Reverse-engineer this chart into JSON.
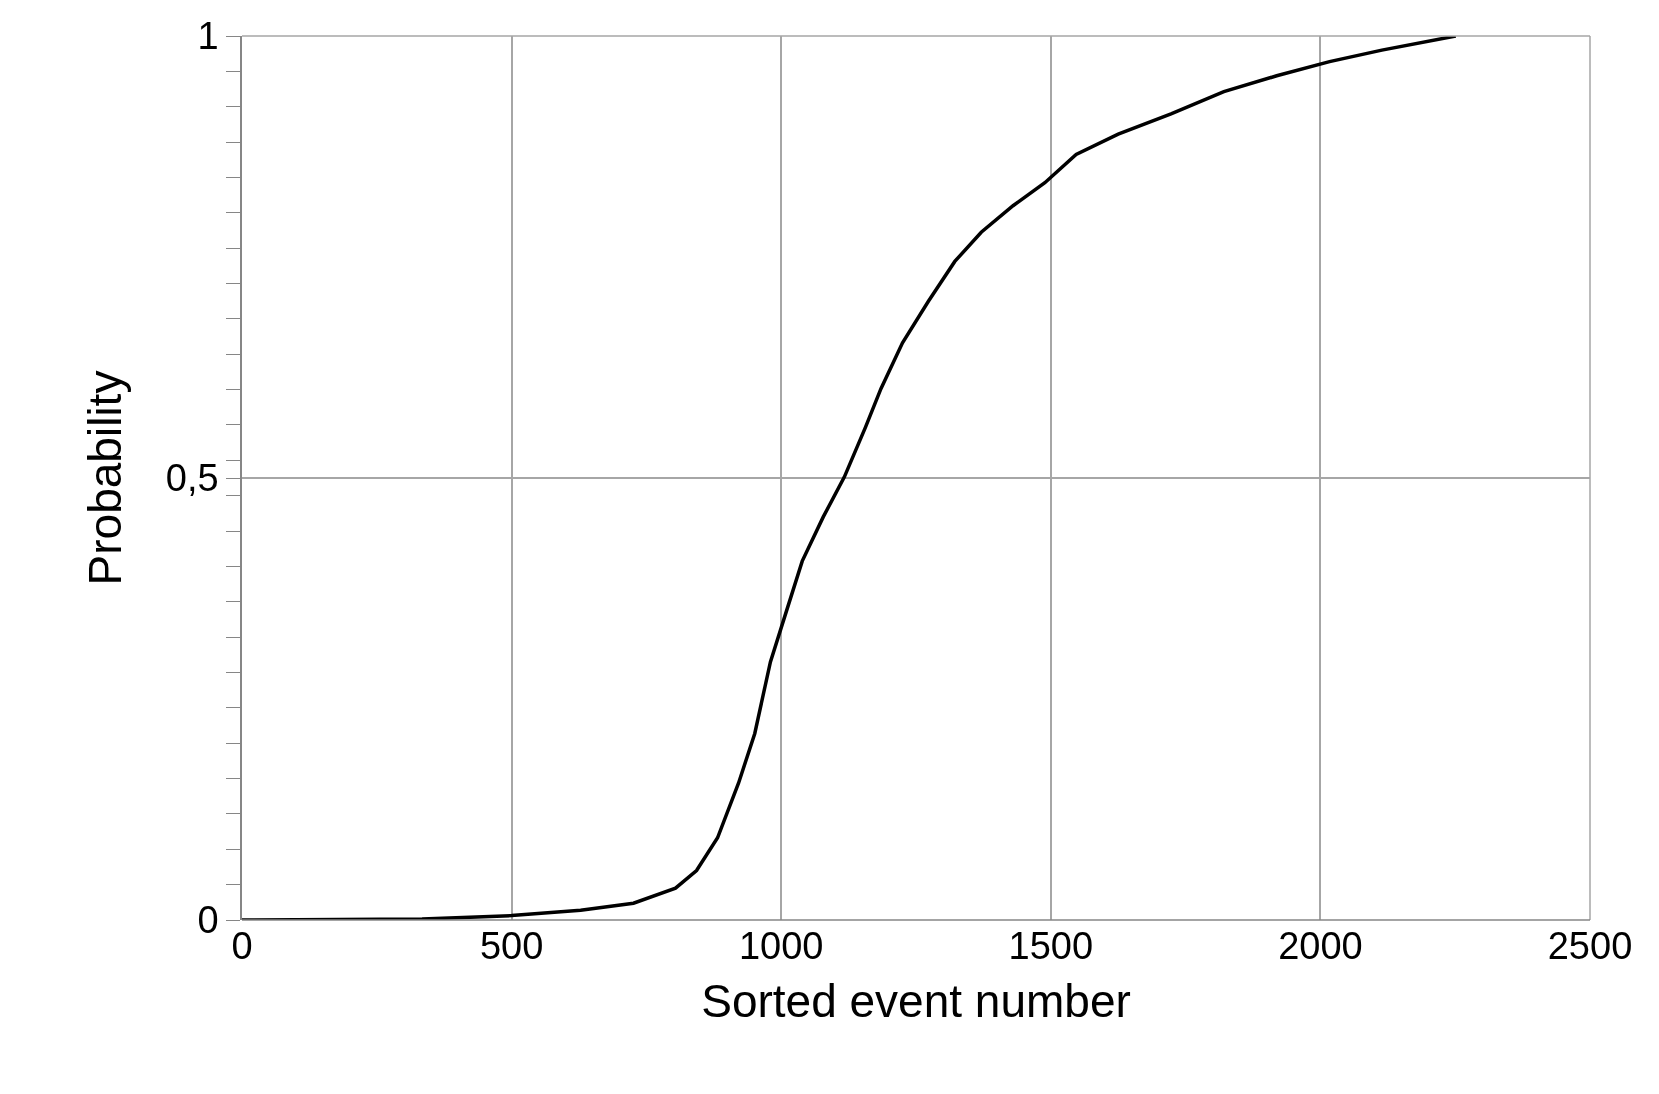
{
  "chart_data": {
    "type": "line",
    "xlabel": "Sorted event number",
    "ylabel": "Probability",
    "x": [
      0,
      334,
      500,
      628,
      726,
      804,
      843,
      882,
      921,
      951,
      980,
      1009,
      1039,
      1078,
      1117,
      1156,
      1185,
      1225,
      1273,
      1322,
      1371,
      1430,
      1489,
      1547,
      1625,
      1723,
      1821,
      1919,
      2017,
      2114,
      2251
    ],
    "series": [
      {
        "color": "#000000",
        "values": [
          0,
          0.001,
          0.005,
          0.011,
          0.019,
          0.036,
          0.056,
          0.093,
          0.155,
          0.211,
          0.292,
          0.348,
          0.406,
          0.456,
          0.501,
          0.557,
          0.601,
          0.653,
          0.7,
          0.745,
          0.778,
          0.808,
          0.834,
          0.866,
          0.889,
          0.912,
          0.937,
          0.955,
          0.971,
          0.984,
          1.0
        ]
      }
    ],
    "xlim": [
      0,
      2500
    ],
    "xticks": [
      0,
      500,
      1000,
      1500,
      2000,
      2500
    ],
    "ylim": [
      0,
      1
    ],
    "yticks": [
      {
        "value": 0,
        "label": "0"
      },
      {
        "value": 0.04,
        "label": null
      },
      {
        "value": 0.08,
        "label": null
      },
      {
        "value": 0.12,
        "label": null
      },
      {
        "value": 0.16,
        "label": null
      },
      {
        "value": 0.2,
        "label": null
      },
      {
        "value": 0.24,
        "label": null
      },
      {
        "value": 0.28,
        "label": null
      },
      {
        "value": 0.32,
        "label": null
      },
      {
        "value": 0.36,
        "label": null
      },
      {
        "value": 0.4,
        "label": null
      },
      {
        "value": 0.44,
        "label": null
      },
      {
        "value": 0.48,
        "label": null
      },
      {
        "value": 0.5,
        "label": "0,5"
      },
      {
        "value": 0.52,
        "label": null
      },
      {
        "value": 0.56,
        "label": null
      },
      {
        "value": 0.6,
        "label": null
      },
      {
        "value": 0.64,
        "label": null
      },
      {
        "value": 0.68,
        "label": null
      },
      {
        "value": 0.72,
        "label": null
      },
      {
        "value": 0.76,
        "label": null
      },
      {
        "value": 0.8,
        "label": null
      },
      {
        "value": 0.84,
        "label": null
      },
      {
        "value": 0.88,
        "label": null
      },
      {
        "value": 0.92,
        "label": null
      },
      {
        "value": 0.96,
        "label": null
      },
      {
        "value": 1,
        "label": "1"
      }
    ],
    "grid": true,
    "marker": "none",
    "line_style": "solid",
    "legend": false
  }
}
